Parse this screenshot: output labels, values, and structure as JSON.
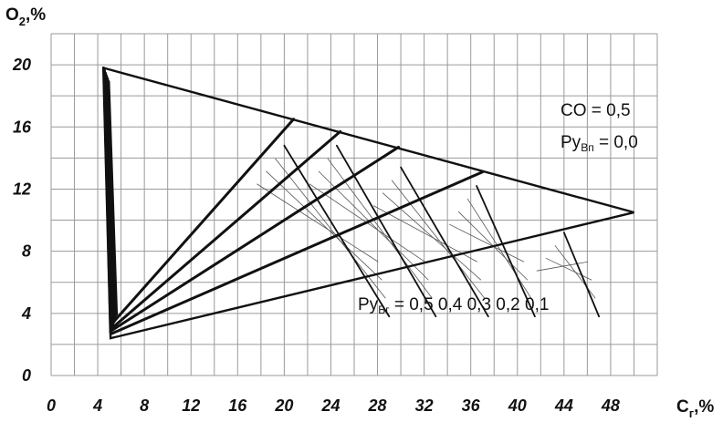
{
  "chart_data": {
    "type": "line",
    "ylabel_main": "O",
    "ylabel_sub": "2",
    "ylabel_unit": ",%",
    "xlabel_main": "C",
    "xlabel_sub": "г",
    "xlabel_unit": ",%",
    "xlim": [
      0,
      52
    ],
    "ylim": [
      0,
      22
    ],
    "x_ticks": [
      "0",
      "4",
      "8",
      "12",
      "16",
      "20",
      "24",
      "28",
      "32",
      "36",
      "40",
      "44",
      "48"
    ],
    "y_ticks": [
      "0",
      "4",
      "8",
      "12",
      "16",
      "20"
    ],
    "grid": true,
    "triangle": {
      "top_left": [
        4.5,
        19.8
      ],
      "bottom": [
        5.1,
        2.4
      ],
      "right": [
        50,
        10.5
      ]
    },
    "fan_lines": [
      {
        "label": "0,5",
        "start": [
          5.3,
          3.4
        ],
        "end": [
          20.8,
          16.5
        ]
      },
      {
        "label": "0,4",
        "start": [
          5.3,
          3.1
        ],
        "end": [
          24.8,
          15.7
        ]
      },
      {
        "label": "0,3",
        "start": [
          5.2,
          2.9
        ],
        "end": [
          29.8,
          14.7
        ]
      },
      {
        "label": "0,2",
        "start": [
          5.2,
          2.7
        ],
        "end": [
          37.0,
          13.1
        ]
      }
    ],
    "secondary_lines": [
      {
        "start": [
          20.0,
          14.8
        ],
        "end": [
          29.0,
          3.8
        ]
      },
      {
        "start": [
          24.5,
          14.8
        ],
        "end": [
          33.0,
          3.8
        ]
      },
      {
        "start": [
          30.0,
          13.4
        ],
        "end": [
          37.5,
          3.8
        ]
      },
      {
        "start": [
          36.5,
          12.2
        ],
        "end": [
          41.5,
          3.8
        ]
      },
      {
        "start": [
          44.0,
          9.2
        ],
        "end": [
          47.0,
          3.8
        ]
      }
    ],
    "annotations": {
      "co": "CO  = 0,5",
      "puvn_main": "Ру",
      "puvn_sub": "Вп",
      "puvn_val": " = 0,0",
      "puvg_main": "Ру",
      "puvg_sub": "Вг",
      "puvg_vals": " = 0,5  0,4  0,3  0,2  0,1"
    }
  }
}
